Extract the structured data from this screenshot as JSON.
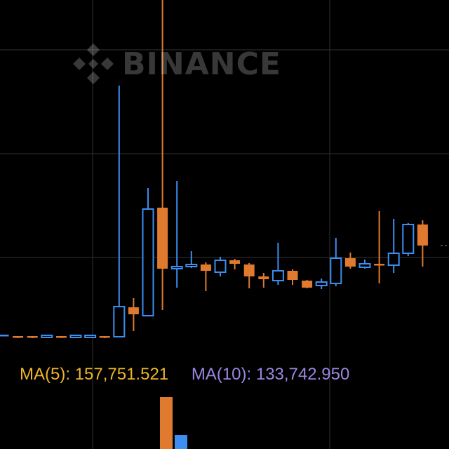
{
  "watermark": {
    "text": "BINANCE",
    "icon": "binance-logo-icon"
  },
  "indicators": {
    "ma5_label": "MA(5):",
    "ma5_value": "157,751.521",
    "ma10_label": "MA(10):",
    "ma10_value": "133,742.950"
  },
  "colors": {
    "up": "#3c8ef0",
    "down": "#e07a2e",
    "grid": "#2a2a2a",
    "background": "#000000",
    "ma5": "#f0b429",
    "ma10": "#9b86e0"
  },
  "chart_data": {
    "type": "candlestick",
    "title": "",
    "xlabel": "",
    "ylabel": "",
    "ylim": [
      0,
      640
    ],
    "grid": true,
    "candles": [
      {
        "o": 162,
        "c": 162,
        "h": 163,
        "l": 161
      },
      {
        "o": 160,
        "c": 159,
        "h": 160,
        "l": 158
      },
      {
        "o": 160,
        "c": 159,
        "h": 160,
        "l": 158
      },
      {
        "o": 159,
        "c": 162,
        "h": 162,
        "l": 159
      },
      {
        "o": 160,
        "c": 159,
        "h": 160,
        "l": 158
      },
      {
        "o": 159,
        "c": 162,
        "h": 162,
        "l": 159
      },
      {
        "o": 159,
        "c": 162,
        "h": 162,
        "l": 159
      },
      {
        "o": 160,
        "c": 159,
        "h": 160,
        "l": 158
      },
      {
        "o": 160,
        "c": 203,
        "h": 518,
        "l": 160
      },
      {
        "o": 202,
        "c": 192,
        "h": 215,
        "l": 168
      },
      {
        "o": 190,
        "c": 342,
        "h": 372,
        "l": 190
      },
      {
        "o": 344,
        "c": 257,
        "h": 660,
        "l": 198
      },
      {
        "o": 257,
        "c": 260,
        "h": 382,
        "l": 230
      },
      {
        "o": 260,
        "c": 263,
        "h": 282,
        "l": 258
      },
      {
        "o": 263,
        "c": 254,
        "h": 266,
        "l": 225
      },
      {
        "o": 252,
        "c": 269,
        "h": 274,
        "l": 246
      },
      {
        "o": 269,
        "c": 264,
        "h": 271,
        "l": 256
      },
      {
        "o": 263,
        "c": 246,
        "h": 265,
        "l": 229
      },
      {
        "o": 246,
        "c": 242,
        "h": 251,
        "l": 230
      },
      {
        "o": 240,
        "c": 254,
        "h": 294,
        "l": 234
      },
      {
        "o": 254,
        "c": 241,
        "h": 256,
        "l": 234
      },
      {
        "o": 240,
        "c": 230,
        "h": 241,
        "l": 229
      },
      {
        "o": 233,
        "c": 238,
        "h": 243,
        "l": 228
      },
      {
        "o": 236,
        "c": 272,
        "h": 301,
        "l": 232
      },
      {
        "o": 272,
        "c": 260,
        "h": 280,
        "l": 257
      },
      {
        "o": 259,
        "c": 264,
        "h": 270,
        "l": 257
      },
      {
        "o": 263,
        "c": 262,
        "h": 339,
        "l": 236
      },
      {
        "o": 262,
        "c": 279,
        "h": 328,
        "l": 251
      },
      {
        "o": 279,
        "c": 320,
        "h": 322,
        "l": 275
      },
      {
        "o": 320,
        "c": 290,
        "h": 326,
        "l": 260
      }
    ],
    "volume": [
      {
        "v": 74,
        "dir": "down"
      },
      {
        "v": 20,
        "dir": "up"
      }
    ]
  }
}
